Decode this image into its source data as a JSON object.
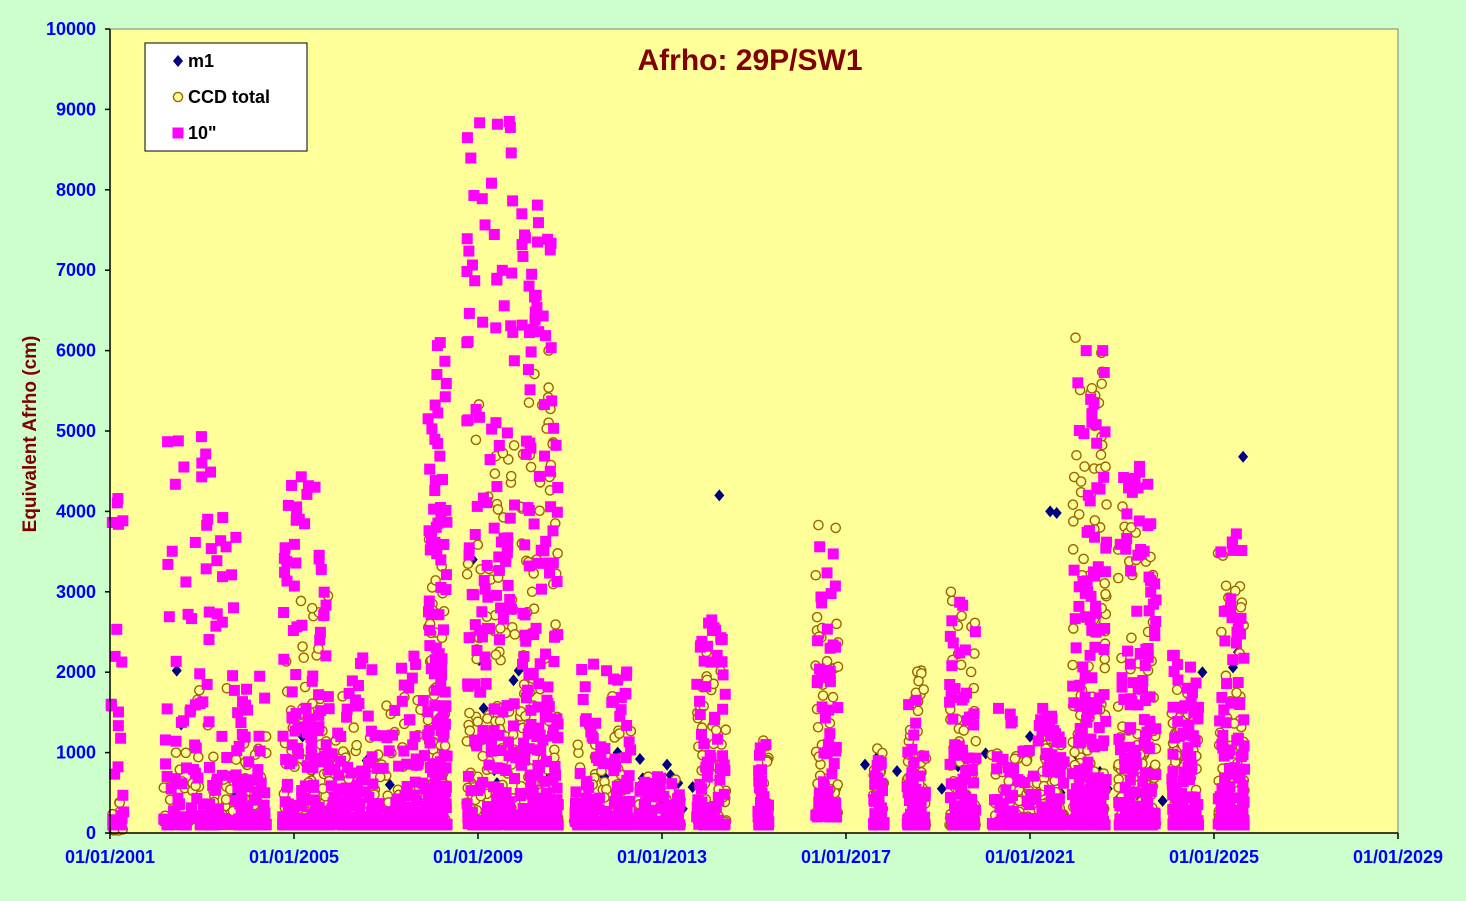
{
  "chart_data": {
    "type": "scatter",
    "title": "Afrho: 29P/SW1",
    "xlabel": "",
    "ylabel": "Equivalent  Afrho (cm)",
    "x_axis_kind": "date",
    "xlim": [
      "2001-01-01",
      "2029-01-01"
    ],
    "ylim": [
      0,
      10000
    ],
    "yticks": [
      0,
      1000,
      2000,
      3000,
      4000,
      5000,
      6000,
      7000,
      8000,
      9000,
      10000
    ],
    "xticks": [
      "01/01/2001",
      "01/01/2005",
      "01/01/2009",
      "01/01/2013",
      "01/01/2017",
      "01/01/2021",
      "01/01/2025",
      "01/01/2029"
    ],
    "grid": false,
    "legend_position": "top-left",
    "background": "#ffff99",
    "series": [
      {
        "name": "m1",
        "marker": "diamond",
        "color": "#000080",
        "points": [
          [
            "2002-06-15",
            2020
          ],
          [
            "2002-07-20",
            1350
          ],
          [
            "2003-09-10",
            520
          ],
          [
            "2004-11-20",
            900
          ],
          [
            "2005-03-10",
            1200
          ],
          [
            "2005-06-01",
            780
          ],
          [
            "2006-02-10",
            530
          ],
          [
            "2006-08-01",
            900
          ],
          [
            "2007-02-01",
            600
          ],
          [
            "2007-09-10",
            420
          ],
          [
            "2008-04-01",
            300
          ],
          [
            "2008-11-20",
            3400
          ],
          [
            "2009-01-10",
            2150
          ],
          [
            "2009-02-15",
            1550
          ],
          [
            "2009-05-10",
            780
          ],
          [
            "2009-06-01",
            620
          ],
          [
            "2009-10-10",
            1900
          ],
          [
            "2009-11-20",
            2020
          ],
          [
            "2010-02-10",
            1500
          ],
          [
            "2010-06-01",
            860
          ],
          [
            "2010-08-01",
            720
          ],
          [
            "2011-06-01",
            640
          ],
          [
            "2011-10-01",
            700
          ],
          [
            "2012-01-15",
            1000
          ],
          [
            "2012-07-10",
            920
          ],
          [
            "2012-08-01",
            680
          ],
          [
            "2012-09-10",
            520
          ],
          [
            "2012-10-01",
            350
          ],
          [
            "2012-11-20",
            600
          ],
          [
            "2013-01-01",
            400
          ],
          [
            "2013-02-10",
            850
          ],
          [
            "2013-03-10",
            720
          ],
          [
            "2013-05-10",
            620
          ],
          [
            "2013-06-15",
            300
          ],
          [
            "2013-09-01",
            570
          ],
          [
            "2013-10-15",
            570
          ],
          [
            "2013-12-01",
            580
          ],
          [
            "2014-04-01",
            4200
          ],
          [
            "2015-03-10",
            450
          ],
          [
            "2016-08-01",
            400
          ],
          [
            "2017-06-01",
            850
          ],
          [
            "2017-09-10",
            950
          ],
          [
            "2018-02-10",
            770
          ],
          [
            "2019-02-01",
            550
          ],
          [
            "2019-05-10",
            900
          ],
          [
            "2019-06-10",
            830
          ],
          [
            "2020-01-15",
            990
          ],
          [
            "2020-08-01",
            600
          ],
          [
            "2021-01-01",
            1200
          ],
          [
            "2021-06-10",
            4000
          ],
          [
            "2021-08-01",
            3980
          ],
          [
            "2021-09-01",
            500
          ],
          [
            "2022-01-15",
            950
          ],
          [
            "2022-03-01",
            1650
          ],
          [
            "2022-07-10",
            760
          ],
          [
            "2022-09-10",
            550
          ],
          [
            "2022-12-01",
            420
          ],
          [
            "2023-06-01",
            420
          ],
          [
            "2023-09-01",
            800
          ],
          [
            "2023-11-20",
            400
          ],
          [
            "2024-07-01",
            420
          ],
          [
            "2024-10-01",
            2000
          ],
          [
            "2025-06-01",
            2060
          ],
          [
            "2025-07-10",
            2250
          ],
          [
            "2025-08-20",
            4680
          ]
        ]
      },
      {
        "name": "CCD total",
        "marker": "circle",
        "color": "#996600",
        "clusters": [
          {
            "start": "2001-01-10",
            "end": "2001-04-20",
            "count": 14,
            "min": 30,
            "max": 380
          },
          {
            "start": "2002-03-01",
            "end": "2003-10-01",
            "count": 60,
            "min": 100,
            "max": 1800
          },
          {
            "start": "2003-10-01",
            "end": "2004-06-01",
            "count": 40,
            "min": 100,
            "max": 1200
          },
          {
            "start": "2004-10-01",
            "end": "2005-10-01",
            "count": 100,
            "min": 100,
            "max": 2950
          },
          {
            "start": "2005-10-01",
            "end": "2007-12-01",
            "count": 110,
            "min": 100,
            "max": 1700
          },
          {
            "start": "2007-12-01",
            "end": "2008-05-01",
            "count": 90,
            "min": 100,
            "max": 3650
          },
          {
            "start": "2008-10-01",
            "end": "2009-11-01",
            "count": 130,
            "min": 100,
            "max": 5330
          },
          {
            "start": "2009-12-01",
            "end": "2010-10-01",
            "count": 130,
            "min": 100,
            "max": 6000
          },
          {
            "start": "2011-02-01",
            "end": "2012-05-01",
            "count": 80,
            "min": 100,
            "max": 1700
          },
          {
            "start": "2012-07-01",
            "end": "2013-06-01",
            "count": 60,
            "min": 100,
            "max": 700
          },
          {
            "start": "2013-10-01",
            "end": "2014-06-01",
            "count": 80,
            "min": 100,
            "max": 2250
          },
          {
            "start": "2015-02-01",
            "end": "2015-05-01",
            "count": 30,
            "min": 100,
            "max": 1150
          },
          {
            "start": "2016-05-01",
            "end": "2016-11-01",
            "count": 60,
            "min": 200,
            "max": 3830
          },
          {
            "start": "2017-08-01",
            "end": "2017-11-01",
            "count": 40,
            "min": 100,
            "max": 1050
          },
          {
            "start": "2018-05-01",
            "end": "2018-10-01",
            "count": 60,
            "min": 100,
            "max": 2020
          },
          {
            "start": "2019-04-01",
            "end": "2019-11-01",
            "count": 70,
            "min": 100,
            "max": 3000
          },
          {
            "start": "2020-03-01",
            "end": "2021-04-01",
            "count": 60,
            "min": 100,
            "max": 1000
          },
          {
            "start": "2021-04-01",
            "end": "2021-10-01",
            "count": 50,
            "min": 100,
            "max": 1250
          },
          {
            "start": "2021-12-01",
            "end": "2022-09-01",
            "count": 140,
            "min": 100,
            "max": 6160
          },
          {
            "start": "2022-12-01",
            "end": "2023-10-01",
            "count": 120,
            "min": 100,
            "max": 4060
          },
          {
            "start": "2024-02-01",
            "end": "2024-09-01",
            "count": 80,
            "min": 100,
            "max": 1800
          },
          {
            "start": "2025-02-01",
            "end": "2025-09-01",
            "count": 100,
            "min": 100,
            "max": 3480
          }
        ]
      },
      {
        "name": "10\"",
        "marker": "square",
        "color": "#ff00ff",
        "clusters": [
          {
            "start": "2001-01-10",
            "end": "2001-04-20",
            "count": 30,
            "min": 100,
            "max": 4160
          },
          {
            "start": "2002-03-01",
            "end": "2003-10-01",
            "count": 120,
            "min": 100,
            "max": 4930
          },
          {
            "start": "2003-10-01",
            "end": "2004-06-01",
            "count": 60,
            "min": 100,
            "max": 1950
          },
          {
            "start": "2004-10-01",
            "end": "2005-10-01",
            "count": 160,
            "min": 100,
            "max": 4430
          },
          {
            "start": "2005-10-01",
            "end": "2007-12-01",
            "count": 200,
            "min": 100,
            "max": 2200
          },
          {
            "start": "2007-12-01",
            "end": "2008-05-01",
            "count": 160,
            "min": 100,
            "max": 6100
          },
          {
            "start": "2008-10-01",
            "end": "2009-11-01",
            "count": 200,
            "min": 100,
            "max": 8850
          },
          {
            "start": "2009-12-01",
            "end": "2010-10-01",
            "count": 220,
            "min": 100,
            "max": 7810
          },
          {
            "start": "2011-02-01",
            "end": "2012-05-01",
            "count": 120,
            "min": 100,
            "max": 2100
          },
          {
            "start": "2012-07-01",
            "end": "2013-06-01",
            "count": 80,
            "min": 100,
            "max": 700
          },
          {
            "start": "2013-10-01",
            "end": "2014-06-01",
            "count": 80,
            "min": 100,
            "max": 2650
          },
          {
            "start": "2015-02-01",
            "end": "2015-05-01",
            "count": 40,
            "min": 100,
            "max": 1100
          },
          {
            "start": "2016-05-01",
            "end": "2016-11-01",
            "count": 60,
            "min": 200,
            "max": 3560
          },
          {
            "start": "2017-08-01",
            "end": "2017-11-01",
            "count": 50,
            "min": 100,
            "max": 900
          },
          {
            "start": "2018-05-01",
            "end": "2018-10-01",
            "count": 70,
            "min": 100,
            "max": 1650
          },
          {
            "start": "2019-04-01",
            "end": "2019-11-01",
            "count": 90,
            "min": 100,
            "max": 2870
          },
          {
            "start": "2020-03-01",
            "end": "2021-04-01",
            "count": 80,
            "min": 100,
            "max": 1550
          },
          {
            "start": "2021-04-01",
            "end": "2021-10-01",
            "count": 60,
            "min": 100,
            "max": 1550
          },
          {
            "start": "2021-12-01",
            "end": "2022-09-01",
            "count": 170,
            "min": 100,
            "max": 6000
          },
          {
            "start": "2022-12-01",
            "end": "2023-10-01",
            "count": 150,
            "min": 100,
            "max": 4560
          },
          {
            "start": "2024-02-01",
            "end": "2024-09-01",
            "count": 110,
            "min": 100,
            "max": 2210
          },
          {
            "start": "2025-02-01",
            "end": "2025-09-01",
            "count": 110,
            "min": 100,
            "max": 3720
          }
        ]
      }
    ]
  }
}
